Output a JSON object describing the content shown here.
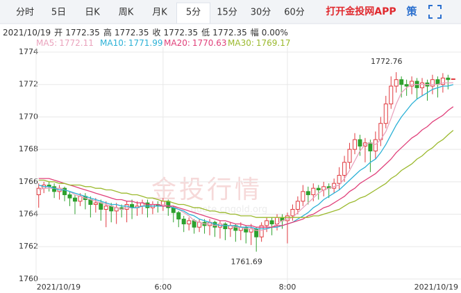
{
  "tabs": [
    "分时",
    "5日",
    "日K",
    "周K",
    "月K",
    "5分",
    "15分",
    "30分",
    "60分"
  ],
  "selected_tab": 5,
  "app_button": "打开金投网APP",
  "strategy_button": "策",
  "info": {
    "date": "2021/10/19",
    "fields": [
      {
        "label": "开",
        "value": "1772.35"
      },
      {
        "label": "高",
        "value": "1772.35"
      },
      {
        "label": "收",
        "value": "1772.35"
      },
      {
        "label": "低",
        "value": "1772.35"
      },
      {
        "label": "幅",
        "value": "0.00%"
      }
    ]
  },
  "watermark": "金投行情",
  "watermark_url": "quote.cngold.org",
  "chart_data": {
    "type": "candlestick",
    "up_color": "#e0383e",
    "down_color": "#2ea12e",
    "xlim": [
      -0.5,
      81.5
    ],
    "xticks": [
      {
        "value": 0,
        "label": "2021/10/19"
      },
      {
        "value": 24,
        "label": "6:00"
      },
      {
        "value": 48,
        "label": "8:00"
      },
      {
        "value": 80,
        "label": "2021/10/19"
      }
    ],
    "ylim": [
      1759.74,
      1774.3
    ],
    "yticks": [
      1760,
      1762,
      1764,
      1766,
      1768,
      1770,
      1772,
      1774
    ],
    "grid": true,
    "open": [
      1765.2,
      1765.6,
      1765.8,
      1765.7,
      1765.4,
      1765.6,
      1765.2,
      1765.0,
      1764.8,
      1765.1,
      1764.9,
      1764.6,
      1764.7,
      1764.3,
      1764.5,
      1764.2,
      1764.4,
      1764.3,
      1764.6,
      1764.4,
      1764.5,
      1764.7,
      1764.4,
      1764.6,
      1764.5,
      1764.8,
      1764.4,
      1764.1,
      1763.7,
      1763.4,
      1763.6,
      1763.2,
      1763.5,
      1763.3,
      1763.5,
      1763.2,
      1763.4,
      1763.1,
      1763.3,
      1763.0,
      1763.2,
      1762.9,
      1763.1,
      1762.6,
      1763.3,
      1763.6,
      1763.4,
      1763.8,
      1763.6,
      1763.9,
      1764.3,
      1764.8,
      1765.4,
      1765.2,
      1765.6,
      1765.5,
      1765.7,
      1765.6,
      1765.9,
      1766.4,
      1767.2,
      1768.0,
      1768.6,
      1768.2,
      1768.4,
      1767.9,
      1768.6,
      1769.6,
      1770.8,
      1771.9,
      1772.3,
      1772.0,
      1771.9,
      1772.2,
      1771.8,
      1772.1,
      1771.9,
      1772.3,
      1772.0,
      1772.4,
      1772.35
    ],
    "high": [
      1765.9,
      1766.0,
      1766.0,
      1765.9,
      1765.8,
      1765.7,
      1765.4,
      1765.2,
      1765.3,
      1765.3,
      1765.1,
      1765.0,
      1764.9,
      1764.8,
      1764.7,
      1764.7,
      1764.6,
      1764.8,
      1764.9,
      1764.8,
      1764.9,
      1764.9,
      1764.8,
      1764.8,
      1765.0,
      1764.9,
      1764.5,
      1764.2,
      1763.9,
      1763.8,
      1763.7,
      1763.7,
      1763.7,
      1763.7,
      1763.6,
      1763.6,
      1763.5,
      1763.5,
      1763.4,
      1763.5,
      1763.3,
      1763.4,
      1763.2,
      1763.5,
      1763.8,
      1763.8,
      1764.0,
      1764.0,
      1764.1,
      1764.6,
      1765.1,
      1765.8,
      1765.7,
      1765.9,
      1765.8,
      1766.0,
      1765.9,
      1766.2,
      1766.9,
      1767.6,
      1768.4,
      1769.0,
      1768.9,
      1768.7,
      1768.6,
      1769.1,
      1770.0,
      1771.3,
      1772.5,
      1772.76,
      1772.5,
      1772.3,
      1772.5,
      1772.4,
      1772.4,
      1772.3,
      1772.6,
      1772.5,
      1772.7,
      1772.6,
      1772.35
    ],
    "low": [
      1764.4,
      1765.3,
      1765.4,
      1765.0,
      1764.9,
      1764.8,
      1764.5,
      1764.0,
      1764.5,
      1764.3,
      1763.8,
      1764.1,
      1763.6,
      1763.2,
      1763.5,
      1763.4,
      1763.8,
      1763.5,
      1763.7,
      1763.9,
      1764.0,
      1763.8,
      1764.0,
      1764.1,
      1764.2,
      1763.9,
      1763.5,
      1763.2,
      1762.9,
      1763.0,
      1762.8,
      1762.9,
      1762.8,
      1762.7,
      1762.6,
      1762.5,
      1762.4,
      1762.6,
      1762.3,
      1762.4,
      1762.2,
      1762.1,
      1761.69,
      1762.3,
      1762.9,
      1762.7,
      1763.0,
      1763.1,
      1762.2,
      1763.6,
      1764.0,
      1764.5,
      1764.6,
      1764.8,
      1764.9,
      1765.1,
      1765.0,
      1765.3,
      1765.5,
      1766.0,
      1766.8,
      1767.7,
      1767.6,
      1767.2,
      1766.6,
      1767.4,
      1768.2,
      1769.3,
      1770.5,
      1771.5,
      1771.2,
      1771.3,
      1771.4,
      1771.1,
      1771.3,
      1771.0,
      1771.4,
      1771.2,
      1771.5,
      1771.7,
      1772.35
    ],
    "close": [
      1765.6,
      1765.8,
      1765.7,
      1765.4,
      1765.6,
      1765.2,
      1765.0,
      1764.8,
      1765.1,
      1764.9,
      1764.6,
      1764.7,
      1764.3,
      1764.5,
      1764.2,
      1764.4,
      1764.3,
      1764.6,
      1764.4,
      1764.5,
      1764.7,
      1764.4,
      1764.6,
      1764.5,
      1764.8,
      1764.4,
      1764.1,
      1763.7,
      1763.4,
      1763.6,
      1763.2,
      1763.5,
      1763.3,
      1763.5,
      1763.2,
      1763.4,
      1763.1,
      1763.3,
      1763.0,
      1763.2,
      1762.9,
      1763.1,
      1762.6,
      1763.3,
      1763.6,
      1763.4,
      1763.8,
      1763.6,
      1763.9,
      1764.3,
      1764.8,
      1765.4,
      1765.2,
      1765.6,
      1765.5,
      1765.7,
      1765.6,
      1765.9,
      1766.4,
      1767.2,
      1768.0,
      1768.6,
      1768.2,
      1768.4,
      1767.9,
      1768.6,
      1769.6,
      1770.8,
      1771.9,
      1772.3,
      1772.0,
      1771.9,
      1772.2,
      1771.8,
      1772.1,
      1771.9,
      1772.3,
      1772.0,
      1772.4,
      1772.3,
      1772.35
    ],
    "annotations": [
      {
        "index": 69,
        "value": 1772.76
      },
      {
        "index": 42,
        "value": 1761.69
      }
    ],
    "series": [
      {
        "name": "MA5:",
        "color": "#eaa3bd",
        "values": [
          1765.5,
          1765.6,
          1765.6,
          1765.6,
          1765.6,
          1765.5,
          1765.4,
          1765.2,
          1765.1,
          1765.0,
          1764.9,
          1764.8,
          1764.7,
          1764.6,
          1764.5,
          1764.4,
          1764.3,
          1764.4,
          1764.4,
          1764.4,
          1764.5,
          1764.5,
          1764.5,
          1764.5,
          1764.6,
          1764.5,
          1764.5,
          1764.3,
          1764.1,
          1763.9,
          1763.6,
          1763.5,
          1763.4,
          1763.4,
          1763.3,
          1763.4,
          1763.3,
          1763.3,
          1763.2,
          1763.2,
          1763.1,
          1763.1,
          1763.0,
          1763.0,
          1763.1,
          1763.2,
          1763.4,
          1763.6,
          1763.7,
          1763.8,
          1764.1,
          1764.4,
          1764.7,
          1765.0,
          1765.3,
          1765.5,
          1765.6,
          1765.7,
          1765.8,
          1766.2,
          1766.7,
          1767.3,
          1767.9,
          1768.3,
          1768.4,
          1768.3,
          1768.6,
          1769.1,
          1769.9,
          1770.8,
          1771.5,
          1771.8,
          1772.0,
          1772.0,
          1772.0,
          1772.0,
          1772.0,
          1772.0,
          1772.1,
          1772.1,
          1772.11
        ]
      },
      {
        "name": "MA10:",
        "color": "#2bb1d6",
        "values": [
          1765.8,
          1765.7,
          1765.7,
          1765.6,
          1765.5,
          1765.5,
          1765.4,
          1765.3,
          1765.2,
          1765.1,
          1765.0,
          1764.9,
          1764.8,
          1764.7,
          1764.6,
          1764.6,
          1764.5,
          1764.5,
          1764.4,
          1764.4,
          1764.5,
          1764.5,
          1764.5,
          1764.5,
          1764.5,
          1764.5,
          1764.4,
          1764.3,
          1764.2,
          1764.0,
          1763.9,
          1763.7,
          1763.6,
          1763.5,
          1763.4,
          1763.3,
          1763.3,
          1763.3,
          1763.3,
          1763.2,
          1763.2,
          1763.2,
          1763.1,
          1763.1,
          1763.1,
          1763.2,
          1763.2,
          1763.3,
          1763.4,
          1763.5,
          1763.7,
          1763.9,
          1764.1,
          1764.4,
          1764.6,
          1764.9,
          1765.1,
          1765.3,
          1765.5,
          1765.8,
          1766.1,
          1766.4,
          1766.7,
          1766.9,
          1767.2,
          1767.4,
          1767.8,
          1768.3,
          1768.9,
          1769.5,
          1770.0,
          1770.4,
          1770.8,
          1771.1,
          1771.3,
          1771.5,
          1771.7,
          1771.8,
          1771.9,
          1771.9,
          1771.99
        ]
      },
      {
        "name": "MA20:",
        "color": "#e0407a",
        "values": [
          1766.2,
          1766.2,
          1766.2,
          1766.1,
          1766.0,
          1765.9,
          1765.8,
          1765.7,
          1765.6,
          1765.5,
          1765.4,
          1765.3,
          1765.2,
          1765.1,
          1765.0,
          1764.9,
          1764.9,
          1764.8,
          1764.8,
          1764.7,
          1764.7,
          1764.6,
          1764.6,
          1764.6,
          1764.5,
          1764.5,
          1764.5,
          1764.4,
          1764.3,
          1764.2,
          1764.1,
          1764.0,
          1763.9,
          1763.8,
          1763.7,
          1763.6,
          1763.6,
          1763.5,
          1763.4,
          1763.4,
          1763.3,
          1763.3,
          1763.2,
          1763.2,
          1763.2,
          1763.2,
          1763.3,
          1763.3,
          1763.4,
          1763.5,
          1763.6,
          1763.7,
          1763.9,
          1764.0,
          1764.2,
          1764.4,
          1764.5,
          1764.7,
          1764.9,
          1765.1,
          1765.4,
          1765.6,
          1765.9,
          1766.1,
          1766.3,
          1766.5,
          1766.8,
          1767.1,
          1767.4,
          1767.8,
          1768.1,
          1768.4,
          1768.7,
          1768.9,
          1769.2,
          1769.4,
          1769.7,
          1769.9,
          1770.1,
          1770.4,
          1770.63
        ]
      },
      {
        "name": "MA30:",
        "color": "#9bb92d",
        "values": [
          1766.1,
          1766.1,
          1766.0,
          1766.0,
          1765.9,
          1765.9,
          1765.8,
          1765.8,
          1765.8,
          1765.7,
          1765.7,
          1765.6,
          1765.6,
          1765.5,
          1765.5,
          1765.4,
          1765.3,
          1765.3,
          1765.2,
          1765.2,
          1765.1,
          1765.0,
          1765.0,
          1764.9,
          1764.8,
          1764.8,
          1764.7,
          1764.6,
          1764.6,
          1764.5,
          1764.4,
          1764.4,
          1764.3,
          1764.2,
          1764.2,
          1764.1,
          1764.1,
          1764.0,
          1764.0,
          1763.9,
          1763.9,
          1763.9,
          1763.8,
          1763.8,
          1763.8,
          1763.8,
          1763.8,
          1763.8,
          1763.8,
          1763.8,
          1763.8,
          1763.8,
          1763.8,
          1763.9,
          1763.9,
          1764.0,
          1764.1,
          1764.2,
          1764.3,
          1764.5,
          1764.7,
          1764.8,
          1765.0,
          1765.1,
          1765.3,
          1765.5,
          1765.7,
          1765.9,
          1766.2,
          1766.4,
          1766.7,
          1766.9,
          1767.1,
          1767.4,
          1767.6,
          1767.9,
          1768.1,
          1768.4,
          1768.6,
          1768.9,
          1769.17
        ]
      }
    ]
  }
}
